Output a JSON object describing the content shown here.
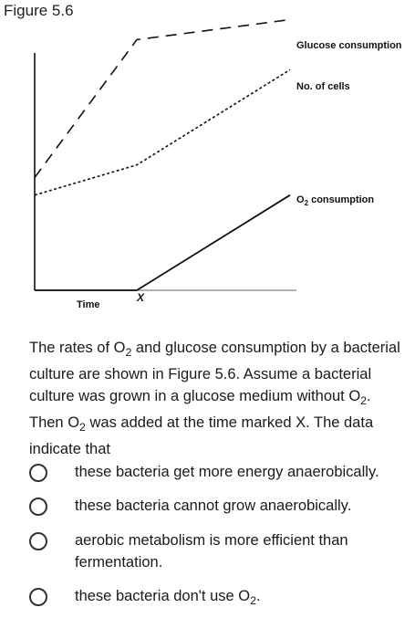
{
  "figure_label": "Figure 5.6",
  "chart_data": {
    "type": "line",
    "title": "",
    "xlabel": "Time",
    "ylabel": "",
    "marker": "X",
    "series": [
      {
        "name": "Glucose consumption",
        "style": "dashed",
        "x": [
          0,
          0.4,
          1.0
        ],
        "y": [
          0.45,
          1.0,
          1.08
        ]
      },
      {
        "name": "No. of cells",
        "style": "dotted",
        "x": [
          0,
          0.4,
          1.0
        ],
        "y": [
          0.38,
          0.5,
          0.88
        ]
      },
      {
        "name_prefix": "O",
        "name_sub": "2",
        "name_suffix": " consumption",
        "style": "solid",
        "x": [
          0,
          0.4,
          1.0
        ],
        "y": [
          0.0,
          0.0,
          0.38
        ]
      }
    ]
  },
  "question": {
    "text_before": "The rates of O",
    "sub1": "2",
    "text_middle": " and glucose consumption by a bacterial culture are shown in Figure 5.6. Assume a bacterial culture was grown in a glucose medium without O",
    "sub2": "2",
    "text_middle2": ". Then O",
    "sub3": "2",
    "text_after": " was added at the time marked X. The data indicate that"
  },
  "options": [
    {
      "text": "these bacteria get more energy anaerobically."
    },
    {
      "text": "these bacteria cannot grow anaerobically."
    },
    {
      "text": "aerobic metabolism is more efficient than fermentation."
    },
    {
      "text_before": "these bacteria don't use O",
      "sub": "2",
      "text_after": "."
    }
  ]
}
